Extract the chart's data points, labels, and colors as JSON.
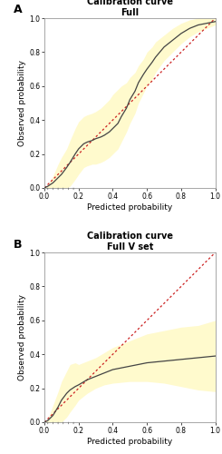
{
  "panel_A": {
    "title_line1": "Calibration curve",
    "title_line2": "Full",
    "xlabel": "Predicted probability",
    "ylabel": "Observed probability",
    "xlim": [
      0.0,
      1.0
    ],
    "ylim": [
      0.0,
      1.0
    ],
    "xticks": [
      0.0,
      0.2,
      0.4,
      0.6,
      0.8,
      1.0
    ],
    "yticks": [
      0.0,
      0.2,
      0.4,
      0.6,
      0.8,
      1.0
    ],
    "ideal_line_color": "#CC2222",
    "cal_line_color": "#444444",
    "ci_color": "#FFFACD",
    "cal_x": [
      0.0,
      0.02,
      0.05,
      0.08,
      0.1,
      0.13,
      0.15,
      0.18,
      0.2,
      0.23,
      0.25,
      0.28,
      0.3,
      0.33,
      0.35,
      0.38,
      0.4,
      0.43,
      0.45,
      0.48,
      0.5,
      0.53,
      0.55,
      0.58,
      0.6,
      0.63,
      0.65,
      0.7,
      0.75,
      0.8,
      0.85,
      0.9,
      0.95,
      1.0
    ],
    "cal_y": [
      0.0,
      0.01,
      0.03,
      0.06,
      0.08,
      0.12,
      0.15,
      0.2,
      0.23,
      0.26,
      0.27,
      0.28,
      0.29,
      0.3,
      0.31,
      0.33,
      0.35,
      0.38,
      0.42,
      0.47,
      0.52,
      0.57,
      0.62,
      0.67,
      0.7,
      0.74,
      0.77,
      0.83,
      0.87,
      0.91,
      0.94,
      0.96,
      0.97,
      0.98
    ],
    "ci_lower": [
      0.0,
      0.0,
      0.0,
      0.0,
      0.0,
      0.0,
      0.01,
      0.05,
      0.08,
      0.12,
      0.13,
      0.14,
      0.14,
      0.15,
      0.16,
      0.18,
      0.2,
      0.23,
      0.27,
      0.33,
      0.38,
      0.44,
      0.5,
      0.56,
      0.6,
      0.64,
      0.68,
      0.75,
      0.8,
      0.85,
      0.89,
      0.92,
      0.94,
      0.96
    ],
    "ci_upper": [
      0.0,
      0.02,
      0.07,
      0.14,
      0.18,
      0.23,
      0.28,
      0.35,
      0.39,
      0.42,
      0.43,
      0.44,
      0.45,
      0.47,
      0.49,
      0.52,
      0.55,
      0.58,
      0.6,
      0.62,
      0.65,
      0.68,
      0.72,
      0.76,
      0.8,
      0.83,
      0.86,
      0.9,
      0.94,
      0.97,
      0.99,
      1.0,
      1.0,
      1.0
    ],
    "rug_x": [
      0.02,
      0.05,
      0.08,
      0.11,
      0.14,
      0.17
    ],
    "panel_label": "A"
  },
  "panel_B": {
    "title_line1": "Calibration curve",
    "title_line2": "Full V set",
    "xlabel": "Predicted probability",
    "ylabel": "Observed probability",
    "xlim": [
      0.0,
      1.0
    ],
    "ylim": [
      0.0,
      1.0
    ],
    "xticks": [
      0.0,
      0.2,
      0.4,
      0.6,
      0.8,
      1.0
    ],
    "yticks": [
      0.0,
      0.2,
      0.4,
      0.6,
      0.8,
      1.0
    ],
    "ideal_line_color": "#CC2222",
    "cal_line_color": "#444444",
    "ci_color": "#FFFACD",
    "cal_x": [
      0.0,
      0.02,
      0.05,
      0.08,
      0.1,
      0.13,
      0.15,
      0.18,
      0.2,
      0.25,
      0.3,
      0.35,
      0.4,
      0.5,
      0.6,
      0.7,
      0.8,
      0.9,
      1.0
    ],
    "cal_y": [
      0.0,
      0.01,
      0.04,
      0.09,
      0.13,
      0.17,
      0.19,
      0.21,
      0.22,
      0.25,
      0.27,
      0.29,
      0.31,
      0.33,
      0.35,
      0.36,
      0.37,
      0.38,
      0.39
    ],
    "ci_lower": [
      0.0,
      0.0,
      0.0,
      0.0,
      0.0,
      0.03,
      0.06,
      0.1,
      0.13,
      0.17,
      0.2,
      0.22,
      0.23,
      0.24,
      0.24,
      0.23,
      0.21,
      0.19,
      0.18
    ],
    "ci_upper": [
      0.0,
      0.02,
      0.1,
      0.18,
      0.24,
      0.3,
      0.34,
      0.35,
      0.34,
      0.36,
      0.38,
      0.41,
      0.44,
      0.48,
      0.52,
      0.54,
      0.56,
      0.57,
      0.6
    ],
    "rug_x": [
      0.02,
      0.05,
      0.08,
      0.11,
      0.14,
      0.17
    ],
    "panel_label": "B"
  },
  "figure_bg": "#ffffff",
  "axes_bg": "#ffffff",
  "axes_border_color": "#999999",
  "tick_fontsize": 5.5,
  "label_fontsize": 6.5,
  "title_fontsize": 7,
  "panel_label_fontsize": 9
}
